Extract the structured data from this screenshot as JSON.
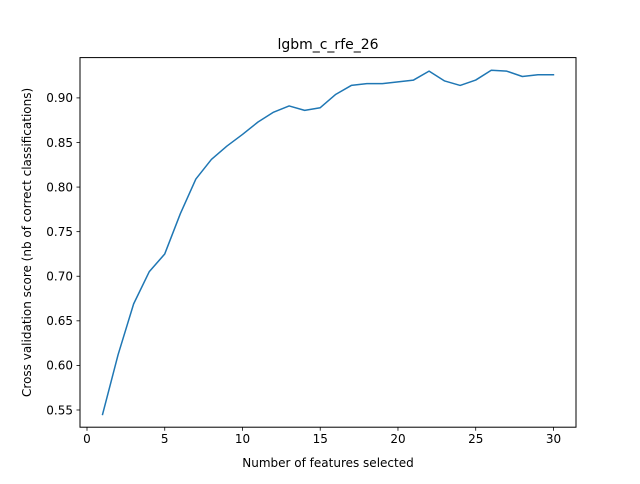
{
  "chart_data": {
    "type": "line",
    "title": "lgbm_c_rfe_26",
    "xlabel": "Number of features selected",
    "ylabel": "Cross validation score (nb of correct classifications)",
    "xlim": [
      -0.45,
      31.45
    ],
    "ylim": [
      0.5307,
      0.9452
    ],
    "xticks": [
      0,
      5,
      10,
      15,
      20,
      25,
      30
    ],
    "xtick_labels": [
      "0",
      "5",
      "10",
      "15",
      "20",
      "25",
      "30"
    ],
    "yticks": [
      0.55,
      0.6,
      0.65,
      0.7,
      0.75,
      0.8,
      0.85,
      0.9
    ],
    "ytick_labels": [
      "0.55",
      "0.60",
      "0.65",
      "0.70",
      "0.75",
      "0.80",
      "0.85",
      "0.90"
    ],
    "grid": false,
    "series": [
      {
        "color": "#1f77b4",
        "x": [
          1,
          2,
          3,
          4,
          5,
          6,
          7,
          8,
          9,
          10,
          11,
          12,
          13,
          14,
          15,
          16,
          17,
          18,
          19,
          20,
          21,
          22,
          23,
          24,
          25,
          26,
          27,
          28,
          29,
          30
        ],
        "y": [
          0.545,
          0.612,
          0.669,
          0.705,
          0.725,
          0.77,
          0.809,
          0.831,
          0.846,
          0.859,
          0.873,
          0.884,
          0.891,
          0.886,
          0.889,
          0.904,
          0.914,
          0.916,
          0.916,
          0.918,
          0.92,
          0.93,
          0.919,
          0.914,
          0.92,
          0.931,
          0.93,
          0.924,
          0.926,
          0.926
        ]
      }
    ]
  }
}
